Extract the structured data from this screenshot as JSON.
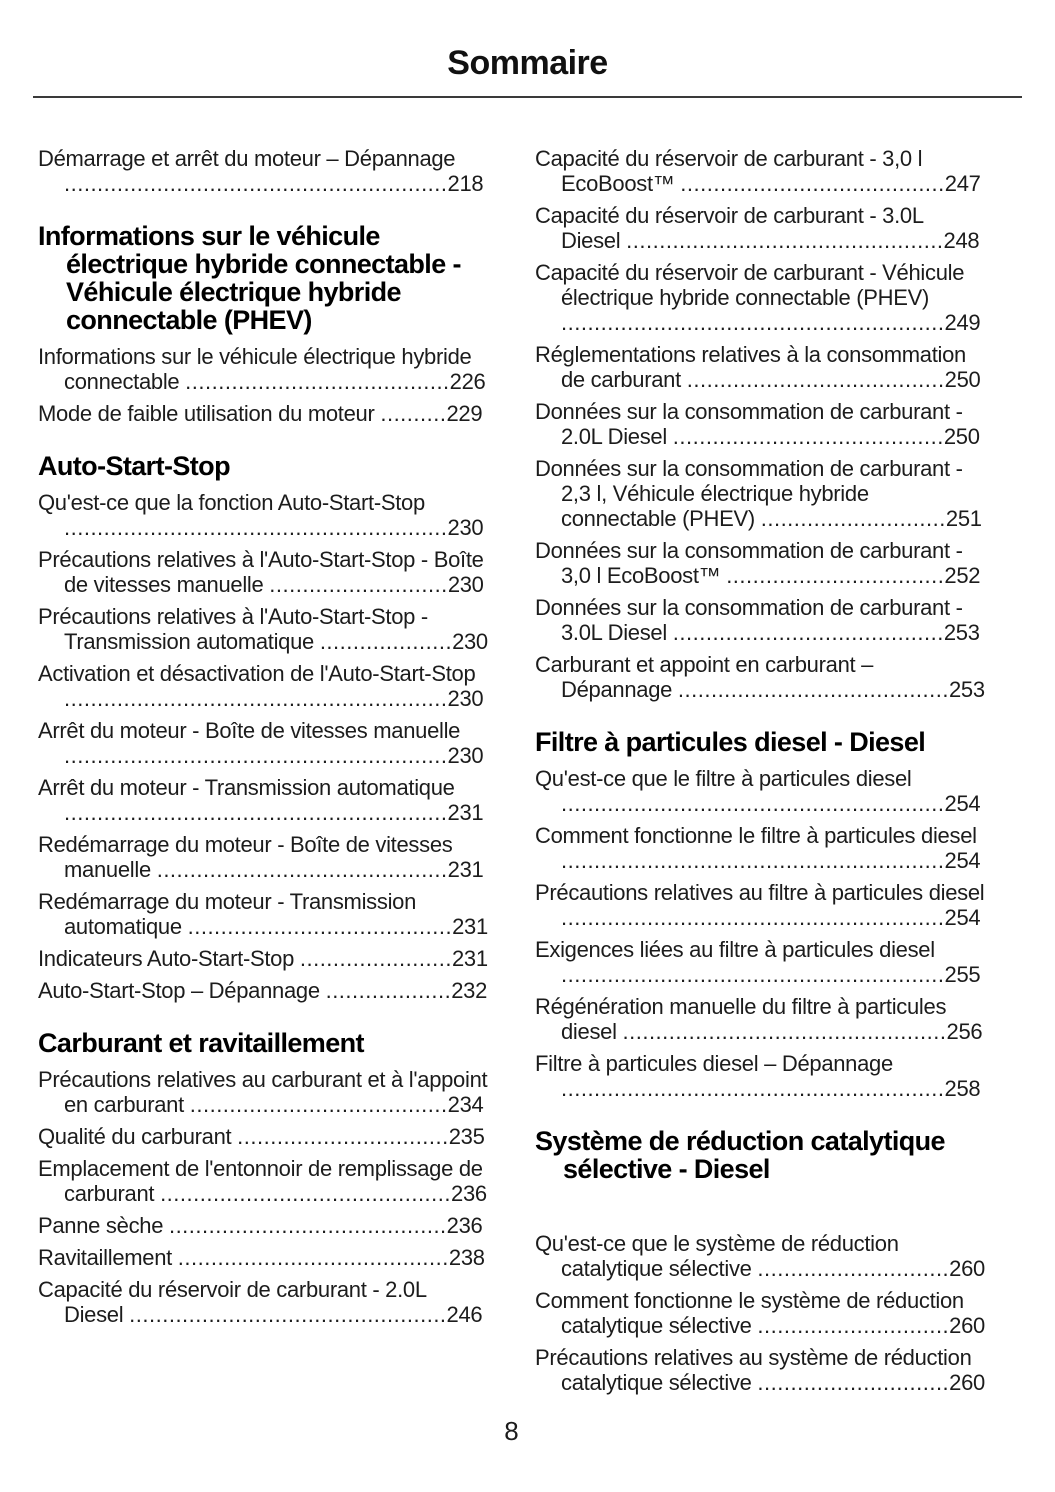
{
  "page": {
    "title": "Sommaire",
    "footer_page_number": "8"
  },
  "toc": {
    "left": [
      {
        "type": "entry",
        "text": "Démarrage et arrêt du moteur – Dépannage",
        "page": "218"
      },
      {
        "type": "heading",
        "text": "Informations sur le véhicule électrique hybride connectable - Véhicule électrique hybride connectable (PHEV)"
      },
      {
        "type": "entry",
        "text": "Informations sur le véhicule électrique hybride connectable",
        "page": "226"
      },
      {
        "type": "entry",
        "text": "Mode de faible utilisation du moteur",
        "page": "229"
      },
      {
        "type": "heading",
        "text": "Auto-Start-Stop"
      },
      {
        "type": "entry",
        "text": "Qu'est-ce que la fonction Auto-Start-Stop",
        "page": "230"
      },
      {
        "type": "entry",
        "text": "Précautions relatives à l'Auto-Start-Stop - Boîte de vitesses manuelle",
        "page": "230"
      },
      {
        "type": "entry",
        "text": "Précautions relatives à l'Auto-Start-Stop - Transmission automatique",
        "page": "230"
      },
      {
        "type": "entry",
        "text": "Activation et désactivation de l'Auto-Start-Stop",
        "page": "230"
      },
      {
        "type": "entry",
        "text": "Arrêt du moteur - Boîte de vitesses manuelle",
        "page": "230"
      },
      {
        "type": "entry",
        "text": "Arrêt du moteur - Transmission automatique",
        "page": "231"
      },
      {
        "type": "entry",
        "text": "Redémarrage du moteur - Boîte de vitesses manuelle",
        "page": "231"
      },
      {
        "type": "entry",
        "text": "Redémarrage du moteur - Transmission automatique",
        "page": "231"
      },
      {
        "type": "entry",
        "text": "Indicateurs Auto-Start-Stop",
        "page": "231"
      },
      {
        "type": "entry",
        "text": "Auto-Start-Stop – Dépannage",
        "page": "232"
      },
      {
        "type": "heading",
        "text": "Carburant et ravitaillement"
      },
      {
        "type": "entry",
        "text": "Précautions relatives au carburant et à l'appoint en carburant",
        "page": "234"
      },
      {
        "type": "entry",
        "text": "Qualité du carburant",
        "page": "235"
      },
      {
        "type": "entry",
        "text": "Emplacement de l'entonnoir de remplissage de carburant",
        "page": "236"
      },
      {
        "type": "entry",
        "text": "Panne sèche",
        "page": "236"
      },
      {
        "type": "entry",
        "text": "Ravitaillement",
        "page": "238"
      },
      {
        "type": "entry",
        "text": "Capacité du réservoir de carburant - 2.0L Diesel",
        "page": "246"
      }
    ],
    "right": [
      {
        "type": "entry",
        "text": "Capacité du réservoir de carburant - 3,0 l EcoBoost™",
        "page": "247"
      },
      {
        "type": "entry",
        "text": "Capacité du réservoir de carburant - 3.0L Diesel",
        "page": "248"
      },
      {
        "type": "entry",
        "text": "Capacité du réservoir de carburant - Véhicule électrique hybride connectable (PHEV)",
        "page": "249"
      },
      {
        "type": "entry",
        "text": "Réglementations relatives à la consommation de carburant",
        "page": "250"
      },
      {
        "type": "entry",
        "text": "Données sur la consommation de carburant - 2.0L Diesel",
        "page": "250"
      },
      {
        "type": "entry",
        "text": "Données sur la consommation de carburant - 2,3 l, Véhicule électrique hybride connectable (PHEV)",
        "page": "251"
      },
      {
        "type": "entry",
        "text": "Données sur la consommation de carburant - 3,0 l EcoBoost™",
        "page": "252"
      },
      {
        "type": "entry",
        "text": "Données sur la consommation de carburant - 3.0L Diesel",
        "page": "253"
      },
      {
        "type": "entry",
        "text": "Carburant et appoint en carburant – Dépannage",
        "page": "253"
      },
      {
        "type": "heading",
        "text": "Filtre à particules diesel - Diesel"
      },
      {
        "type": "entry",
        "text": "Qu'est-ce que le filtre à particules diesel",
        "page": "254"
      },
      {
        "type": "entry",
        "text": "Comment fonctionne le filtre à particules diesel",
        "page": "254"
      },
      {
        "type": "entry",
        "text": "Précautions relatives au filtre à particules diesel",
        "page": "254"
      },
      {
        "type": "entry",
        "text": "Exigences liées au filtre à particules diesel",
        "page": "255"
      },
      {
        "type": "entry",
        "text": "Régénération manuelle du filtre à particules diesel",
        "page": "256"
      },
      {
        "type": "entry",
        "text": "Filtre à particules diesel – Dépannage",
        "page": "258"
      },
      {
        "type": "heading",
        "text": "Système de réduction catalytique sélective - Diesel",
        "gap_after": true
      },
      {
        "type": "entry",
        "text": "Qu'est-ce que le système de réduction catalytique sélective",
        "page": "260"
      },
      {
        "type": "entry",
        "text": "Comment fonctionne le système de réduction catalytique sélective",
        "page": "260"
      },
      {
        "type": "entry",
        "text": "Précautions relatives au système de réduction catalytique sélective",
        "page": "260"
      }
    ]
  }
}
